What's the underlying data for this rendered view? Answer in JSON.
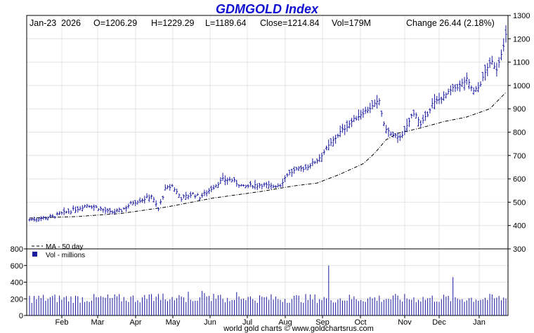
{
  "chart_data": {
    "type": "ohlc",
    "title": "GDMGOLD Index",
    "info": {
      "date": "Jan-23  2026",
      "open": "O=1206.29",
      "high": "H=1229.29",
      "low": "L=1189.64",
      "close": "Close=1214.84",
      "volume": "Vol=179M",
      "change": "Change 26.44 (2.18%)"
    },
    "price_axis": {
      "ylim": [
        300,
        1300
      ],
      "ticks": [
        "1300",
        "1200",
        "1100",
        "1000",
        "900",
        "800",
        "700",
        "600",
        "500",
        "400",
        "300"
      ]
    },
    "volume_axis": {
      "ylim": [
        0,
        800
      ],
      "ticks": [
        "800",
        "600",
        "400",
        "200",
        "0"
      ]
    },
    "x_months": [
      "Feb",
      "Mar",
      "Apr",
      "May",
      "Jun",
      "Jul",
      "Aug",
      "Sep",
      "Oct",
      "Nov",
      "Dec",
      "Jan"
    ],
    "legend": {
      "ma": "MA - 50 day",
      "volume": "Vol - millions"
    },
    "footer": "world gold charts © www.goldchartsrus.com",
    "colors": {
      "bars": "#1a1aa0",
      "title": "#1010d0",
      "grid": "#e4e4e4",
      "ma": "#000000"
    },
    "price_keypoints": [
      [
        0,
        425
      ],
      [
        10,
        438
      ],
      [
        20,
        470
      ],
      [
        25,
        488
      ],
      [
        30,
        475
      ],
      [
        35,
        455
      ],
      [
        40,
        465
      ],
      [
        45,
        500
      ],
      [
        50,
        515
      ],
      [
        53,
        528
      ],
      [
        56,
        470
      ],
      [
        59,
        555
      ],
      [
        62,
        570
      ],
      [
        66,
        518
      ],
      [
        71,
        535
      ],
      [
        74,
        522
      ],
      [
        79,
        558
      ],
      [
        84,
        597
      ],
      [
        88,
        595
      ],
      [
        93,
        565
      ],
      [
        97,
        573
      ],
      [
        101,
        575
      ],
      [
        105,
        568
      ],
      [
        109,
        575
      ],
      [
        112,
        620
      ],
      [
        116,
        638
      ],
      [
        120,
        648
      ],
      [
        125,
        680
      ],
      [
        130,
        740
      ],
      [
        135,
        800
      ],
      [
        140,
        845
      ],
      [
        145,
        885
      ],
      [
        149,
        910
      ],
      [
        152,
        935
      ],
      [
        154,
        830
      ],
      [
        157,
        790
      ],
      [
        160,
        775
      ],
      [
        163,
        800
      ],
      [
        166,
        870
      ],
      [
        168,
        880
      ],
      [
        170,
        830
      ],
      [
        172,
        860
      ],
      [
        175,
        920
      ],
      [
        178,
        940
      ],
      [
        181,
        960
      ],
      [
        184,
        985
      ],
      [
        187,
        1000
      ],
      [
        190,
        1025
      ],
      [
        193,
        975
      ],
      [
        195,
        990
      ],
      [
        197,
        1030
      ],
      [
        199,
        1080
      ],
      [
        201,
        1100
      ],
      [
        203,
        1070
      ],
      [
        205,
        1140
      ],
      [
        206,
        1165
      ],
      [
        207,
        1215
      ]
    ],
    "ma_keypoints": [
      [
        0,
        432
      ],
      [
        20,
        438
      ],
      [
        40,
        452
      ],
      [
        60,
        480
      ],
      [
        80,
        518
      ],
      [
        100,
        545
      ],
      [
        115,
        570
      ],
      [
        125,
        582
      ],
      [
        135,
        620
      ],
      [
        145,
        665
      ],
      [
        150,
        710
      ],
      [
        155,
        768
      ],
      [
        160,
        795
      ],
      [
        170,
        818
      ],
      [
        180,
        845
      ],
      [
        190,
        865
      ],
      [
        200,
        900
      ],
      [
        207,
        970
      ]
    ],
    "volume_spikes": [
      [
        130,
        600
      ],
      [
        184,
        460
      ]
    ]
  }
}
